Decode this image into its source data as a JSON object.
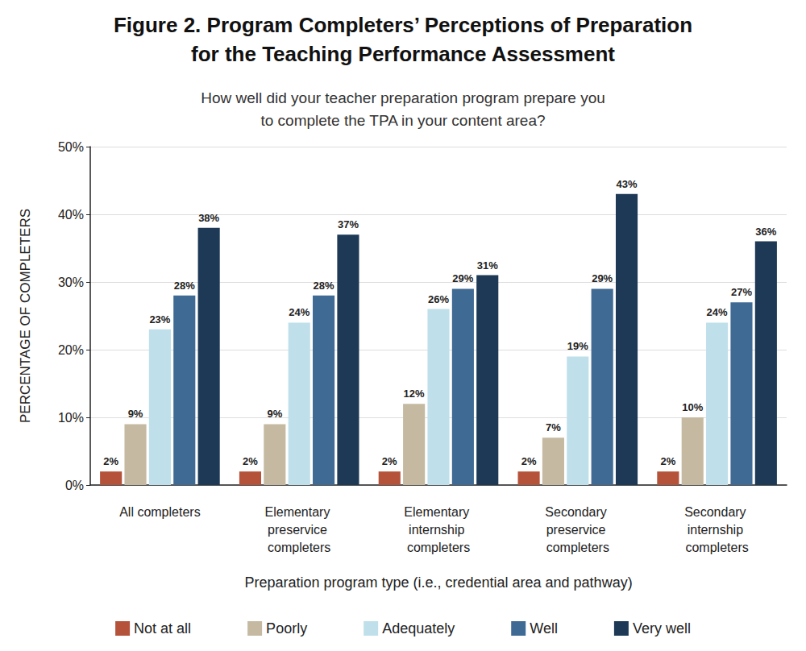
{
  "chart_data": {
    "type": "bar",
    "title": "Figure 2. Program Completers’ Perceptions of Preparation\nfor the Teaching Performance Assessment",
    "subtitle": "How well did your teacher preparation program prepare you\nto complete the TPA in your content area?",
    "x_label": "Preparation program type (i.e., credential area and pathway)",
    "y_label": "PERCENTAGE OF COMPLETERS",
    "categories": [
      "All completers",
      "Elementary preservice completers",
      "Elementary internship completers",
      "Secondary preservice completers",
      "Secondary internship completers"
    ],
    "series": [
      {
        "name": "Not at all",
        "color": "#b5533a",
        "values": [
          2,
          2,
          2,
          2,
          2
        ],
        "value_labels": [
          "2%",
          "2%",
          "2%",
          "2%",
          "2%"
        ]
      },
      {
        "name": "Poorly",
        "color": "#c5baa1",
        "values": [
          9,
          9,
          12,
          7,
          10
        ],
        "value_labels": [
          "9%",
          "9%",
          "12%",
          "7%",
          "10%"
        ]
      },
      {
        "name": "Adequately",
        "color": "#bfe0ea",
        "values": [
          23,
          24,
          26,
          19,
          24
        ],
        "value_labels": [
          "23%",
          "24%",
          "26%",
          "19%",
          "24%"
        ]
      },
      {
        "name": "Well",
        "color": "#3f6a94",
        "values": [
          28,
          28,
          29,
          29,
          27
        ],
        "value_labels": [
          "28%",
          "28%",
          "29%",
          "29%",
          "27%"
        ]
      },
      {
        "name": "Very well",
        "color": "#1d3956",
        "values": [
          38,
          37,
          31,
          43,
          36
        ],
        "value_labels": [
          "38%",
          "37%",
          "31%",
          "43%",
          "36%"
        ]
      }
    ],
    "ylim": [
      0,
      50
    ],
    "yticks": [
      {
        "value": 0,
        "label": "0%"
      },
      {
        "value": 10,
        "label": "10%"
      },
      {
        "value": 20,
        "label": "20%"
      },
      {
        "value": 30,
        "label": "30%"
      },
      {
        "value": 40,
        "label": "40%"
      },
      {
        "value": 50,
        "label": "50%"
      }
    ],
    "grid": true,
    "legend": "bottom",
    "data_labels": true
  }
}
